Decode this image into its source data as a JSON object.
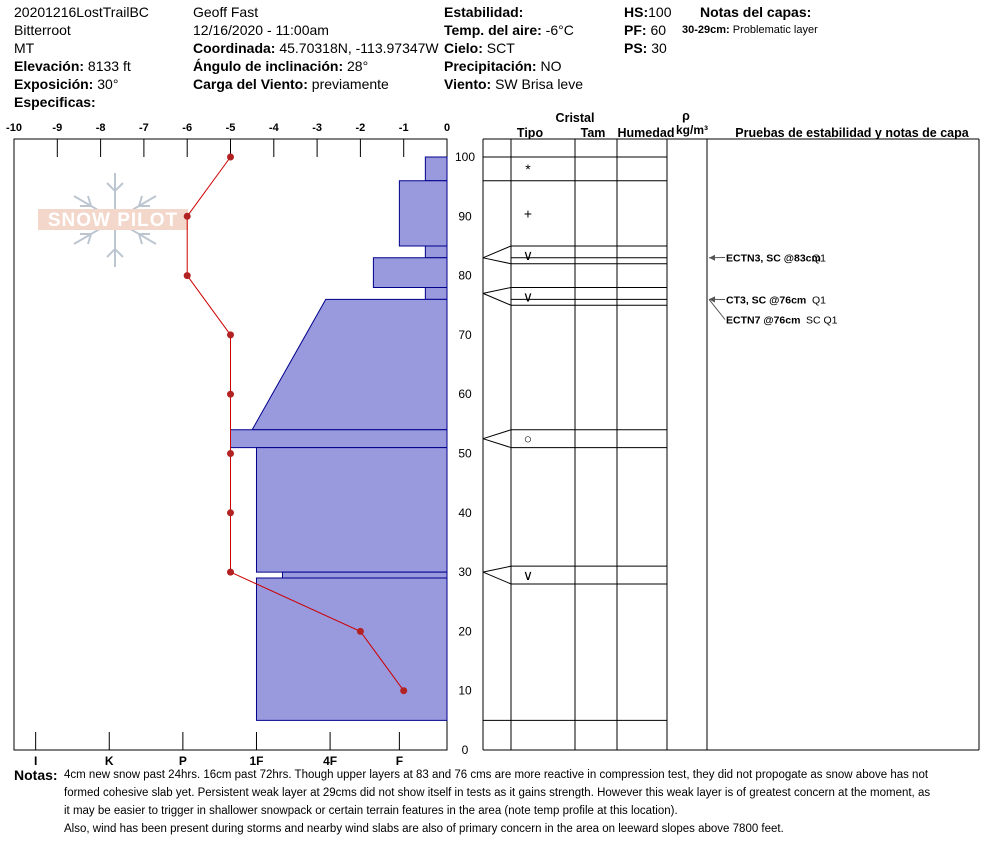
{
  "header": {
    "col1": {
      "site": "20201216LostTrailBC",
      "range": "Bitterroot",
      "state": "MT",
      "elevation_label": "Elevación:",
      "elevation_value": "8133 ft",
      "aspect_label": "Exposición:",
      "aspect_value": "30°",
      "specifics_label": "Especificas:"
    },
    "col2": {
      "observer": "Geoff Fast",
      "datetime": "12/16/2020 - 11:00am",
      "coord_label": "Coordinada:",
      "coord_value": "45.70318N, -113.97347W",
      "slope_label": "Ángulo de inclinación:",
      "slope_value": "28°",
      "wind_load_label": "Carga del Viento:",
      "wind_load_value": "previamente"
    },
    "col3": {
      "stability_label": "Estabilidad:",
      "air_temp_label": "Temp. del aire:",
      "air_temp_value": "-6°C",
      "sky_label": "Cielo:",
      "sky_value": "SCT",
      "precip_label": "Precipitación:",
      "precip_value": "NO",
      "wind_label": "Viento:",
      "wind_value": "SW Brisa leve"
    },
    "col4": {
      "hs_label": "HS:",
      "hs_value": "100",
      "pf_label": "PF:",
      "pf_value": "60",
      "ps_label": "PS:",
      "ps_value": "30"
    },
    "layer_notes": {
      "title": "Notas del capas:",
      "range": "30-29cm:",
      "text": "Problematic layer"
    }
  },
  "table_headers": {
    "crystal": "Cristal",
    "type": "Tipo",
    "size": "Tam",
    "moisture": "Humedad",
    "density_symbol": "ρ",
    "density_unit": "kg/m³",
    "tests": "Pruebas de estabilidad y notas de capa"
  },
  "logo_text": "SNOW PILOT",
  "chart_data": {
    "type": "snow_profile",
    "temperature_axis": {
      "ticks": [
        -10,
        -9,
        -8,
        -7,
        -6,
        -5,
        -4,
        -3,
        -2,
        -1,
        0
      ],
      "range": [
        -10,
        0
      ]
    },
    "hardness_axis": {
      "ticks": [
        "I",
        "K",
        "P",
        "1F",
        "4F",
        "F"
      ],
      "tick_index": [
        -9.5,
        -7.8,
        -6.1,
        -4.4,
        -2.7,
        -1.1
      ]
    },
    "depth_axis": {
      "ticks": [
        0,
        10,
        20,
        30,
        40,
        50,
        60,
        70,
        80,
        90,
        100
      ],
      "range": [
        0,
        100
      ],
      "unit": "cm"
    },
    "temperature_profile": [
      {
        "depth": 100,
        "temp": -5
      },
      {
        "depth": 90,
        "temp": -6
      },
      {
        "depth": 80,
        "temp": -6
      },
      {
        "depth": 70,
        "temp": -5
      },
      {
        "depth": 60,
        "temp": -5
      },
      {
        "depth": 50,
        "temp": -5
      },
      {
        "depth": 40,
        "temp": -5
      },
      {
        "depth": 30,
        "temp": -5
      },
      {
        "depth": 20,
        "temp": -2
      },
      {
        "depth": 10,
        "temp": -1
      }
    ],
    "hardness_layers": [
      {
        "top": 100,
        "bottom": 96,
        "hardness_top": -0.5,
        "hardness_bottom": -0.5
      },
      {
        "top": 96,
        "bottom": 85,
        "hardness_top": -1.1,
        "hardness_bottom": -1.1
      },
      {
        "top": 85,
        "bottom": 83,
        "hardness_top": -0.5,
        "hardness_bottom": -0.5
      },
      {
        "top": 83,
        "bottom": 78,
        "hardness_top": -1.7,
        "hardness_bottom": -1.7
      },
      {
        "top": 78,
        "bottom": 76,
        "hardness_top": -0.5,
        "hardness_bottom": -0.5
      },
      {
        "top": 76,
        "bottom": 54,
        "hardness_top": -2.8,
        "hardness_bottom": -4.5
      },
      {
        "top": 54,
        "bottom": 51,
        "hardness_top": -5.0,
        "hardness_bottom": -5.0
      },
      {
        "top": 51,
        "bottom": 30,
        "hardness_top": -4.4,
        "hardness_bottom": -4.4
      },
      {
        "top": 30,
        "bottom": 29,
        "hardness_top": -3.8,
        "hardness_bottom": -3.8
      },
      {
        "top": 29,
        "bottom": 5,
        "hardness_top": -4.4,
        "hardness_bottom": -4.4
      }
    ],
    "layer_boundaries": [
      100,
      96,
      85,
      83,
      82,
      78,
      76,
      75,
      54,
      51,
      31,
      28,
      5
    ],
    "crystal_symbols": [
      {
        "depth": 98,
        "symbol": "*"
      },
      {
        "depth": 90.5,
        "symbol": "+"
      },
      {
        "depth": 83.5,
        "symbol": "∨"
      },
      {
        "depth": 76.5,
        "symbol": "∨"
      },
      {
        "depth": 52.5,
        "symbol": "○"
      },
      {
        "depth": 29.5,
        "symbol": "∨"
      }
    ],
    "stability_tests": [
      {
        "depth": 83,
        "label": "ECTN3, SC @83cm",
        "quality": "Q1"
      },
      {
        "depth": 76,
        "label": "CT3, SC @76cm",
        "quality": "Q1"
      },
      {
        "depth": 76,
        "label": "ECTN7 @76cm",
        "quality": "SC Q1"
      }
    ],
    "colors": {
      "hardness_fill": "#9999dd",
      "hardness_stroke": "#00008b",
      "temperature_line": "#cc0000",
      "temperature_point": "#b22222"
    }
  },
  "notes": {
    "label": "Notas:",
    "lines": [
      "4cm new snow past 24hrs. 16cm past 72hrs. Though upper layers at 83 and 76 cms are more reactive in compression test, they did not propogate as snow above has not",
      "formed cohesive slab yet. Persistent weak layer at 29cms did not show itself in tests as it gains strength. However this weak layer is of greatest concern at the moment, as",
      "it may be easier to trigger in shallower snowpack or certain terrain features in the area (note temp profile at this location).",
      "Also, wind has been present during storms and nearby wind slabs are also of primary concern in the area on leeward slopes above 7800 feet."
    ]
  }
}
